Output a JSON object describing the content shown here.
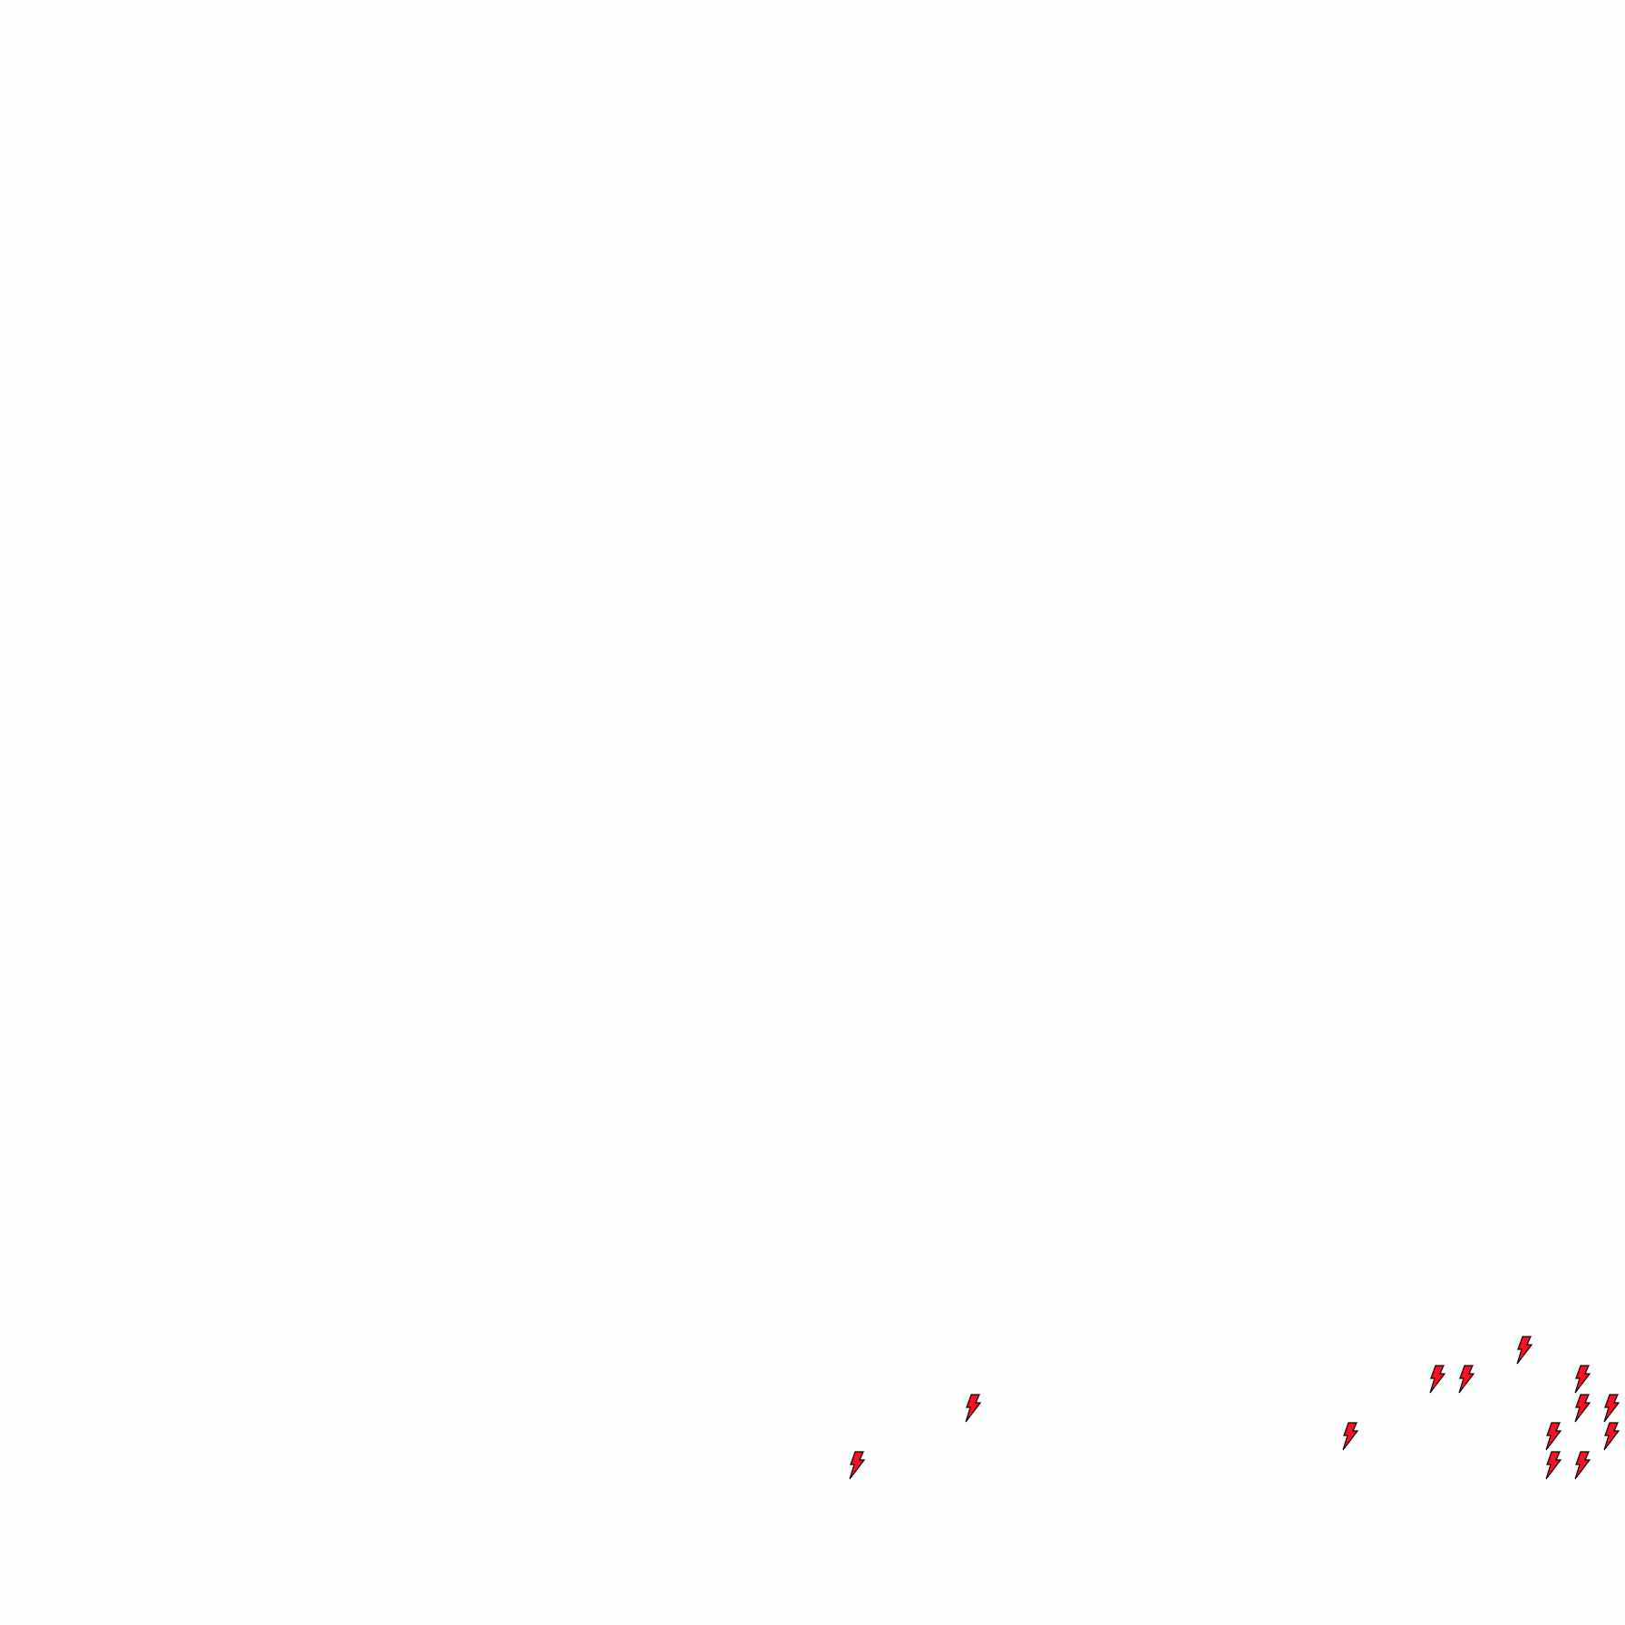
{
  "map": {
    "background_color": "#fefefe",
    "marker_icon": "lightning-bolt-icon",
    "marker_fill_color": "#ff1020",
    "marker_stroke_color": "#000000"
  }
}
